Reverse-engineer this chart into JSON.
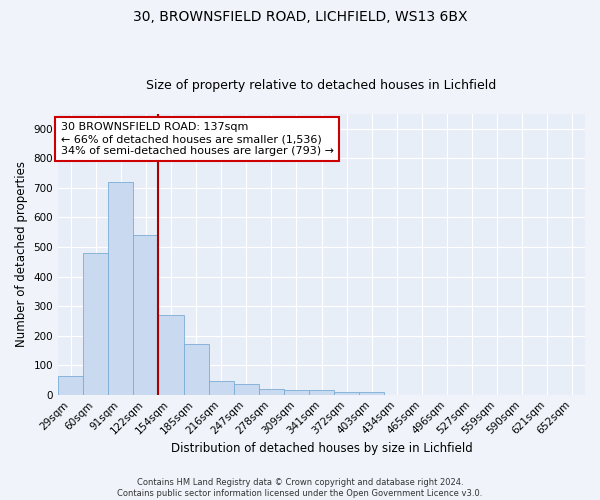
{
  "title1": "30, BROWNSFIELD ROAD, LICHFIELD, WS13 6BX",
  "title2": "Size of property relative to detached houses in Lichfield",
  "xlabel": "Distribution of detached houses by size in Lichfield",
  "ylabel": "Number of detached properties",
  "bar_labels": [
    "29sqm",
    "60sqm",
    "91sqm",
    "122sqm",
    "154sqm",
    "185sqm",
    "216sqm",
    "247sqm",
    "278sqm",
    "309sqm",
    "341sqm",
    "372sqm",
    "403sqm",
    "434sqm",
    "465sqm",
    "496sqm",
    "527sqm",
    "559sqm",
    "590sqm",
    "621sqm",
    "652sqm"
  ],
  "bar_values": [
    62,
    480,
    720,
    540,
    270,
    170,
    48,
    35,
    18,
    15,
    15,
    10,
    10,
    0,
    0,
    0,
    0,
    0,
    0,
    0,
    0
  ],
  "bar_color": "#c8d9f0",
  "bar_edge_color": "#7aadd4",
  "red_line_x": 3.5,
  "annotation_text": "30 BROWNSFIELD ROAD: 137sqm\n← 66% of detached houses are smaller (1,536)\n34% of semi-detached houses are larger (793) →",
  "annotation_box_color": "#ffffff",
  "annotation_box_edge": "#cc0000",
  "ylim": [
    0,
    950
  ],
  "yticks": [
    0,
    100,
    200,
    300,
    400,
    500,
    600,
    700,
    800,
    900
  ],
  "background_color": "#e8eef8",
  "grid_color": "#ffffff",
  "footer_line1": "Contains HM Land Registry data © Crown copyright and database right 2024.",
  "footer_line2": "Contains public sector information licensed under the Open Government Licence v3.0.",
  "title1_fontsize": 10,
  "title2_fontsize": 9,
  "xlabel_fontsize": 8.5,
  "ylabel_fontsize": 8.5,
  "tick_fontsize": 7.5,
  "annotation_fontsize": 8,
  "footer_fontsize": 6
}
